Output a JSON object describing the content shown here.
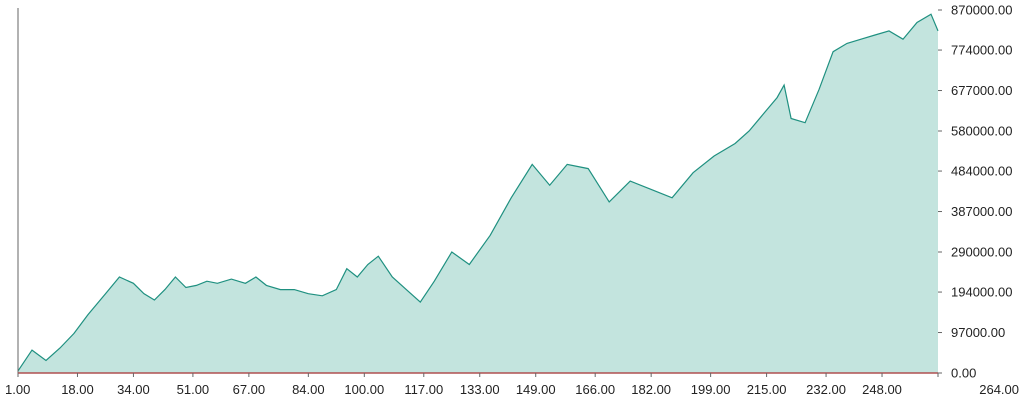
{
  "chart_data": {
    "type": "area",
    "title": "",
    "xlabel": "",
    "ylabel": "",
    "x_range": [
      1,
      264
    ],
    "ylim": [
      0,
      870000
    ],
    "x_ticks": [
      "1.00",
      "18.00",
      "34.00",
      "51.00",
      "67.00",
      "84.00",
      "100.00",
      "117.00",
      "133.00",
      "149.00",
      "166.00",
      "182.00",
      "199.00",
      "215.00",
      "232.00",
      "248.00",
      "264.00"
    ],
    "y_ticks": [
      "0.00",
      "97000.00",
      "194000.00",
      "290000.00",
      "387000.00",
      "484000.00",
      "580000.00",
      "677000.00",
      "774000.00",
      "870000.00"
    ],
    "y_axis_position": "right",
    "grid": false,
    "colors": {
      "line": "#1f9080",
      "fill": "#c3e4de",
      "baseline": "#b05050",
      "axis": "#666666"
    },
    "series": [
      {
        "x": [
          1,
          5,
          9,
          13,
          17,
          21,
          26,
          30,
          34,
          37,
          40,
          43,
          46,
          49,
          52,
          55,
          58,
          62,
          66,
          69,
          72,
          76,
          80,
          84,
          88,
          92,
          95,
          98,
          101,
          104,
          108,
          112,
          116,
          120,
          125,
          130,
          136,
          142,
          148,
          153,
          158,
          164,
          170,
          176,
          182,
          188,
          194,
          200,
          206,
          210,
          214,
          218,
          220,
          222,
          226,
          230,
          234,
          238,
          242,
          246,
          250,
          254,
          258,
          262,
          264
        ],
        "y": [
          5000,
          55000,
          30000,
          60000,
          95000,
          140000,
          190000,
          230000,
          215000,
          190000,
          175000,
          200000,
          230000,
          205000,
          210000,
          220000,
          215000,
          225000,
          215000,
          230000,
          210000,
          200000,
          200000,
          190000,
          185000,
          200000,
          250000,
          230000,
          260000,
          280000,
          230000,
          200000,
          170000,
          220000,
          290000,
          260000,
          330000,
          420000,
          500000,
          450000,
          500000,
          490000,
          410000,
          460000,
          440000,
          420000,
          480000,
          520000,
          550000,
          580000,
          620000,
          660000,
          690000,
          610000,
          600000,
          680000,
          770000,
          790000,
          800000,
          810000,
          820000,
          800000,
          840000,
          860000,
          820000
        ]
      }
    ]
  }
}
